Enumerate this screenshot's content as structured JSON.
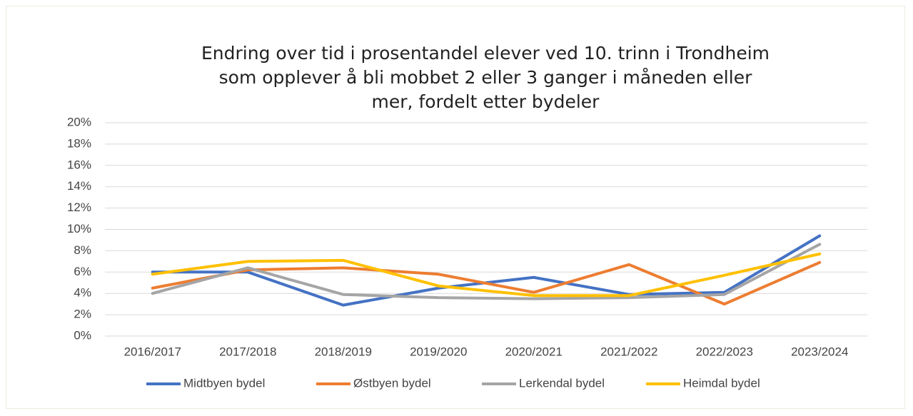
{
  "chart_data": {
    "type": "line",
    "title": "Endring over tid i prosentandel elever ved 10. trinn i Trondheim som opplever å bli mobbet 2 eller 3 ganger i måneden eller mer, fordelt etter bydeler",
    "categories": [
      "2016/2017",
      "2017/2018",
      "2018/2019",
      "2019/2020",
      "2020/2021",
      "2021/2022",
      "2022/2023",
      "2023/2024"
    ],
    "series": [
      {
        "name": "Midtbyen bydel",
        "color": "#4472c4",
        "values": [
          6.0,
          6.0,
          2.9,
          4.5,
          5.5,
          3.9,
          4.1,
          9.4
        ]
      },
      {
        "name": "Østbyen bydel",
        "color": "#ed7d31",
        "values": [
          4.5,
          6.2,
          6.4,
          5.8,
          4.1,
          6.7,
          3.0,
          6.9
        ]
      },
      {
        "name": "Lerkendal bydel",
        "color": "#a5a5a5",
        "values": [
          4.0,
          6.4,
          3.9,
          3.6,
          3.5,
          3.6,
          3.9,
          8.6
        ]
      },
      {
        "name": "Heimdal bydel",
        "color": "#ffc000",
        "values": [
          5.8,
          7.0,
          7.1,
          4.7,
          3.8,
          3.8,
          5.7,
          7.7
        ]
      }
    ],
    "ylim": [
      0,
      20
    ],
    "yticks": [
      {
        "value": 0,
        "label": "0%"
      },
      {
        "value": 2,
        "label": "2%"
      },
      {
        "value": 4,
        "label": "4%"
      },
      {
        "value": 6,
        "label": "6%"
      },
      {
        "value": 8,
        "label": "8%"
      },
      {
        "value": 10,
        "label": "10%"
      },
      {
        "value": 12,
        "label": "12%"
      },
      {
        "value": 14,
        "label": "14%"
      },
      {
        "value": 16,
        "label": "16%"
      },
      {
        "value": 18,
        "label": "18%"
      },
      {
        "value": 20,
        "label": "20%"
      }
    ],
    "grid": true,
    "legend": "bottom"
  }
}
